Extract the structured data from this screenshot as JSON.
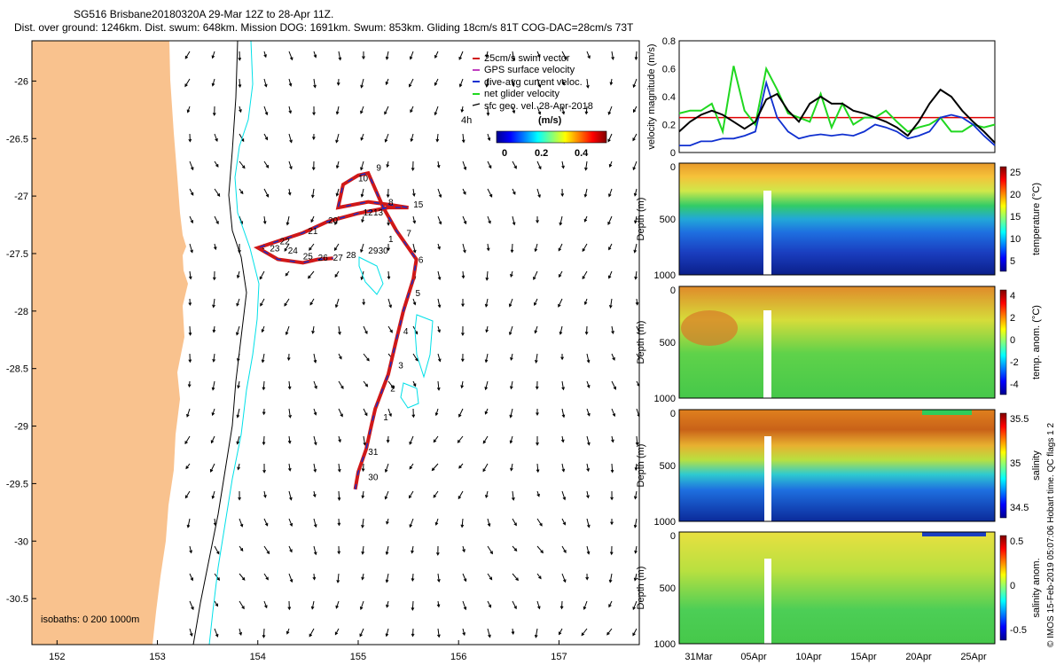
{
  "header": {
    "line1": "SG516 Brisbane20180320A 29-Mar 12Z to 28-Apr 11Z.",
    "line2": "Dist. over ground: 1246km. Dist. swum: 648km. Mission DOG: 1691km. Swum: 853km. Gliding 18cm/s 81T COG-DAC=28cm/s 73T"
  },
  "colors": {
    "land": "#f9c28e",
    "isobath_200": "#00e0e8",
    "track": "#d01818",
    "dac": "#1030d0",
    "net": "#20d820",
    "threshold": "#e00000"
  },
  "map": {
    "xticks": [
      152,
      153,
      154,
      155,
      156,
      157
    ],
    "yticks": [
      -26,
      -26.5,
      -27,
      -27.5,
      -28,
      -28.5,
      -29,
      -29.5,
      -30,
      -30.5
    ],
    "xlim": [
      151.75,
      157.8
    ],
    "ylim": [
      -30.9,
      -25.65
    ],
    "legend": [
      "25cm/s swim vector",
      "GPS surface velocity",
      "dive-avg current veloc.",
      "net glider velocity",
      "sfc geo. vel. 28-Apr-2018"
    ],
    "colorbar_title": "(m/s)",
    "colorbar_ticks": [
      "0",
      "0.2",
      "0.4"
    ],
    "time_label": "4h",
    "isobaths_label": "isobaths: 0   200  1000m",
    "day_labels": [
      {
        "label": "30",
        "lon": 155.1,
        "lat": -29.47
      },
      {
        "label": "31",
        "lon": 155.1,
        "lat": -29.25
      },
      {
        "label": "1",
        "lon": 155.25,
        "lat": -28.95
      },
      {
        "label": "2",
        "lon": 155.32,
        "lat": -28.7
      },
      {
        "label": "3",
        "lon": 155.4,
        "lat": -28.5
      },
      {
        "label": "4",
        "lon": 155.45,
        "lat": -28.2
      },
      {
        "label": "5",
        "lon": 155.57,
        "lat": -27.87
      },
      {
        "label": "6",
        "lon": 155.6,
        "lat": -27.58
      },
      {
        "label": "7",
        "lon": 155.48,
        "lat": -27.35
      },
      {
        "label": "8",
        "lon": 155.3,
        "lat": -27.08
      },
      {
        "label": "9",
        "lon": 155.18,
        "lat": -26.78
      },
      {
        "label": "10",
        "lon": 155.0,
        "lat": -26.87
      },
      {
        "label": "15",
        "lon": 155.55,
        "lat": -27.1
      },
      {
        "label": "20",
        "lon": 154.7,
        "lat": -27.24
      },
      {
        "label": "21",
        "lon": 154.5,
        "lat": -27.33
      },
      {
        "label": "22",
        "lon": 154.22,
        "lat": -27.42
      },
      {
        "label": "23",
        "lon": 154.12,
        "lat": -27.48
      },
      {
        "label": "24",
        "lon": 154.3,
        "lat": -27.5
      },
      {
        "label": "25",
        "lon": 154.45,
        "lat": -27.55
      },
      {
        "label": "26",
        "lon": 154.6,
        "lat": -27.56
      },
      {
        "label": "27",
        "lon": 154.75,
        "lat": -27.56
      },
      {
        "label": "28",
        "lon": 154.88,
        "lat": -27.54
      },
      {
        "label": "29",
        "lon": 155.1,
        "lat": -27.5
      },
      {
        "label": "30",
        "lon": 155.2,
        "lat": -27.5
      },
      {
        "label": "1",
        "lon": 155.3,
        "lat": -27.4
      },
      {
        "label": "12",
        "lon": 155.05,
        "lat": -27.17
      },
      {
        "label": "13",
        "lon": 155.15,
        "lat": -27.17
      }
    ],
    "track": [
      [
        154.97,
        -29.55
      ],
      [
        155.0,
        -29.4
      ],
      [
        155.08,
        -29.2
      ],
      [
        155.13,
        -29.0
      ],
      [
        155.17,
        -28.85
      ],
      [
        155.3,
        -28.55
      ],
      [
        155.38,
        -28.25
      ],
      [
        155.45,
        -28.0
      ],
      [
        155.55,
        -27.72
      ],
      [
        155.58,
        -27.55
      ],
      [
        155.5,
        -27.45
      ],
      [
        155.38,
        -27.3
      ],
      [
        155.25,
        -27.1
      ],
      [
        155.1,
        -26.8
      ],
      [
        155.0,
        -26.82
      ],
      [
        154.85,
        -26.9
      ],
      [
        154.8,
        -27.1
      ],
      [
        155.1,
        -27.05
      ],
      [
        155.35,
        -27.08
      ],
      [
        155.5,
        -27.1
      ],
      [
        155.3,
        -27.1
      ],
      [
        155.0,
        -27.15
      ],
      [
        154.7,
        -27.22
      ],
      [
        154.45,
        -27.32
      ],
      [
        154.0,
        -27.45
      ],
      [
        154.2,
        -27.55
      ],
      [
        154.45,
        -27.58
      ],
      [
        154.6,
        -27.55
      ],
      [
        154.75,
        -27.54
      ]
    ]
  },
  "right": {
    "speed": {
      "ylabel": "velocity magnitude (m/s)",
      "ylim": [
        0,
        0.8
      ],
      "yticks": [
        0,
        0.2,
        0.4,
        0.6,
        0.8
      ],
      "threshold": 0.25,
      "black": [
        0.15,
        0.22,
        0.27,
        0.3,
        0.27,
        0.22,
        0.17,
        0.22,
        0.38,
        0.42,
        0.3,
        0.22,
        0.35,
        0.4,
        0.35,
        0.35,
        0.3,
        0.28,
        0.25,
        0.22,
        0.18,
        0.12,
        0.22,
        0.35,
        0.45,
        0.4,
        0.3,
        0.22,
        0.15,
        0.07
      ],
      "blue": [
        0.05,
        0.05,
        0.08,
        0.08,
        0.1,
        0.1,
        0.12,
        0.15,
        0.5,
        0.25,
        0.15,
        0.1,
        0.12,
        0.13,
        0.12,
        0.13,
        0.12,
        0.15,
        0.2,
        0.18,
        0.15,
        0.1,
        0.12,
        0.15,
        0.25,
        0.27,
        0.25,
        0.2,
        0.12,
        0.05
      ],
      "green": [
        0.28,
        0.3,
        0.3,
        0.35,
        0.15,
        0.62,
        0.3,
        0.2,
        0.6,
        0.45,
        0.28,
        0.25,
        0.22,
        0.42,
        0.18,
        0.35,
        0.2,
        0.25,
        0.25,
        0.3,
        0.22,
        0.15,
        0.18,
        0.2,
        0.25,
        0.15,
        0.15,
        0.2,
        0.18,
        0.2
      ]
    },
    "panels": [
      {
        "ylabel": "Depth (m)",
        "cblabel": "temperature (°C)",
        "cbticks": [
          "25",
          "20",
          "15",
          "10",
          "5"
        ]
      },
      {
        "ylabel": "Depth (m)",
        "cblabel": "temp. anom. (°C)",
        "cbticks": [
          "4",
          "2",
          "0",
          "-2",
          "-4"
        ]
      },
      {
        "ylabel": "Depth (m)",
        "cblabel": "salinity",
        "cbticks": [
          "35.5",
          "35",
          "34.5"
        ]
      },
      {
        "ylabel": "Depth (m)",
        "cblabel": "salinity anom.",
        "cbticks": [
          "0.5",
          "0",
          "-0.5"
        ]
      }
    ],
    "depth_ticks": [
      "0",
      "500",
      "1000"
    ],
    "time_ticks": [
      "31Mar",
      "05Apr",
      "10Apr",
      "15Apr",
      "20Apr",
      "25Apr"
    ],
    "footer": "© IMOS 15-Feb-2019 05:07:06 Hobart time. QC flags 1 2"
  }
}
